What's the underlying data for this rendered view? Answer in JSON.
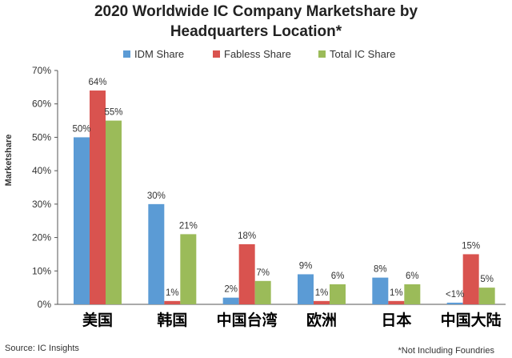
{
  "chart_data": {
    "type": "bar",
    "title_line1": "2020 Worldwide IC Company Marketshare by",
    "title_line2": "Headquarters Location*",
    "ylabel": "Marketshare",
    "xlabel": "",
    "ylim": [
      0,
      70
    ],
    "yticks": [
      "0%",
      "10%",
      "20%",
      "30%",
      "40%",
      "50%",
      "60%",
      "70%"
    ],
    "categories": [
      "美国",
      "韩国",
      "中国台湾",
      "欧洲",
      "日本",
      "中国大陆"
    ],
    "series": [
      {
        "name": "IDM Share",
        "color": "#5b9bd5",
        "values": [
          50,
          30,
          2,
          9,
          8,
          0.5
        ],
        "labels": [
          "50%",
          "30%",
          "2%",
          "9%",
          "8%",
          "<1%"
        ]
      },
      {
        "name": "Fabless Share",
        "color": "#d9534f",
        "values": [
          64,
          1,
          18,
          1,
          1,
          15
        ],
        "labels": [
          "64%",
          "1%",
          "18%",
          "1%",
          "1%",
          "15%"
        ]
      },
      {
        "name": "Total IC Share",
        "color": "#9bbb59",
        "values": [
          55,
          21,
          7,
          6,
          6,
          5
        ],
        "labels": [
          "55%",
          "21%",
          "7%",
          "6%",
          "6%",
          "5%"
        ]
      }
    ],
    "legend": "top",
    "grid": false
  },
  "footer": {
    "source": "Source: IC Insights",
    "note": "*Not Including Foundries"
  }
}
